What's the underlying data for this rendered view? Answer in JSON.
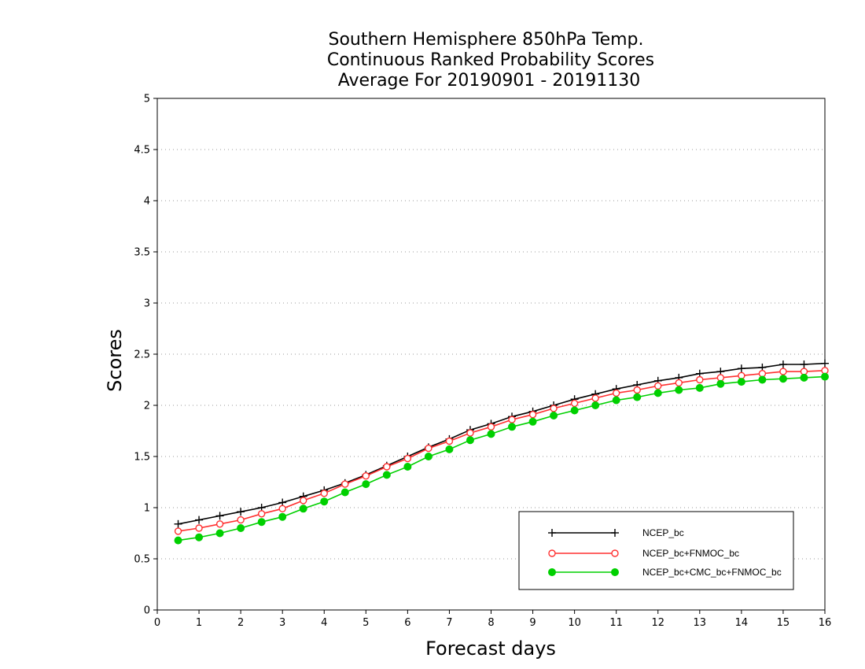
{
  "chart_data": {
    "type": "line",
    "title_lines": [
      "Southern Hemisphere 850hPa Temp.",
      "Continuous Ranked Probability Scores",
      "Average For 20190901 - 20191130"
    ],
    "xlabel": "Forecast days",
    "ylabel": "Scores",
    "xlim": [
      0,
      16
    ],
    "ylim": [
      0,
      5
    ],
    "xticks": [
      "0",
      "1",
      "2",
      "3",
      "4",
      "5",
      "6",
      "7",
      "8",
      "9",
      "10",
      "11",
      "12",
      "13",
      "14",
      "15",
      "16"
    ],
    "yticks": [
      "0",
      "0.5",
      "1",
      "1.5",
      "2",
      "2.5",
      "3",
      "3.5",
      "4",
      "4.5",
      "5"
    ],
    "grid": "horizontal dotted",
    "legend_position": "bottom-right",
    "x": [
      0.5,
      1,
      1.5,
      2,
      2.5,
      3,
      3.5,
      4,
      4.5,
      5,
      5.5,
      6,
      6.5,
      7,
      7.5,
      8,
      8.5,
      9,
      9.5,
      10,
      10.5,
      11,
      11.5,
      12,
      12.5,
      13,
      13.5,
      14,
      14.5,
      15,
      15.5,
      16
    ],
    "series": [
      {
        "name": "NCEP_bc",
        "color": "#000000",
        "marker": "plus",
        "values": [
          0.84,
          0.88,
          0.92,
          0.96,
          1.0,
          1.05,
          1.11,
          1.17,
          1.24,
          1.32,
          1.41,
          1.5,
          1.59,
          1.67,
          1.76,
          1.82,
          1.89,
          1.94,
          2.0,
          2.06,
          2.11,
          2.16,
          2.2,
          2.24,
          2.27,
          2.31,
          2.33,
          2.36,
          2.37,
          2.4,
          2.4,
          2.41
        ]
      },
      {
        "name": "NCEP_bc+FNMOC_bc",
        "color": "#ff3030",
        "marker": "open-circle",
        "values": [
          0.77,
          0.8,
          0.84,
          0.88,
          0.94,
          0.99,
          1.07,
          1.14,
          1.23,
          1.31,
          1.4,
          1.48,
          1.58,
          1.65,
          1.73,
          1.79,
          1.86,
          1.91,
          1.97,
          2.02,
          2.07,
          2.12,
          2.15,
          2.19,
          2.22,
          2.25,
          2.27,
          2.29,
          2.31,
          2.33,
          2.33,
          2.34
        ]
      },
      {
        "name": "NCEP_bc+CMC_bc+FNMOC_bc",
        "color": "#00d000",
        "marker": "filled-circle",
        "values": [
          0.68,
          0.71,
          0.75,
          0.8,
          0.86,
          0.91,
          0.99,
          1.06,
          1.15,
          1.23,
          1.32,
          1.4,
          1.5,
          1.57,
          1.66,
          1.72,
          1.79,
          1.84,
          1.9,
          1.95,
          2.0,
          2.05,
          2.08,
          2.12,
          2.15,
          2.17,
          2.21,
          2.23,
          2.25,
          2.26,
          2.27,
          2.28
        ]
      }
    ]
  }
}
